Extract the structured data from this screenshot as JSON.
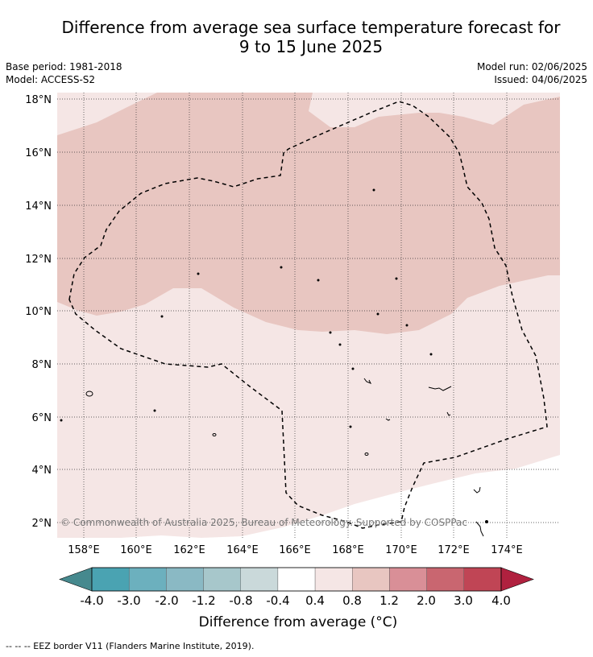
{
  "title_line1": "Difference from average sea surface temperature forecast for",
  "title_line2": "9 to 15 June 2025",
  "meta": {
    "base_period": "Base period: 1981-2018",
    "model": "Model: ACCESS-S2",
    "model_run": "Model run: 02/06/2025",
    "issued": "Issued: 04/06/2025"
  },
  "map": {
    "lon_ticks": [
      "158°E",
      "160°E",
      "162°E",
      "164°E",
      "166°E",
      "168°E",
      "170°E",
      "172°E",
      "174°E"
    ],
    "lat_ticks": [
      "18°N",
      "16°N",
      "14°N",
      "12°N",
      "10°N",
      "8°N",
      "6°N",
      "4°N",
      "2°N"
    ],
    "copyright": "© Commonwealth of Australia 2025, Bureau of Meteorology. Supported by COSPPac",
    "colors": {
      "band_0_4_to_0_8": "#f5e6e5",
      "band_0_8_to_1_2": "#e8c6c1",
      "below_0_4": "#ffffff"
    }
  },
  "colorbar": {
    "labels": [
      "-4.0",
      "-3.0",
      "-2.0",
      "-1.2",
      "-0.8",
      "-0.4",
      "0.4",
      "0.8",
      "1.2",
      "2.0",
      "3.0",
      "4.0"
    ],
    "colors": [
      "#46898e",
      "#4aa3b2",
      "#6cb0be",
      "#8ab9c4",
      "#a7c7cb",
      "#cad9da",
      "#ffffff",
      "#f5e6e5",
      "#e8c6c1",
      "#d98f97",
      "#c96670",
      "#c04555",
      "#b0213f"
    ],
    "title": "Difference from average (°C)"
  },
  "legend_note": "--  --  -- EEZ border V11 (Flanders Marine Institute, 2019)."
}
